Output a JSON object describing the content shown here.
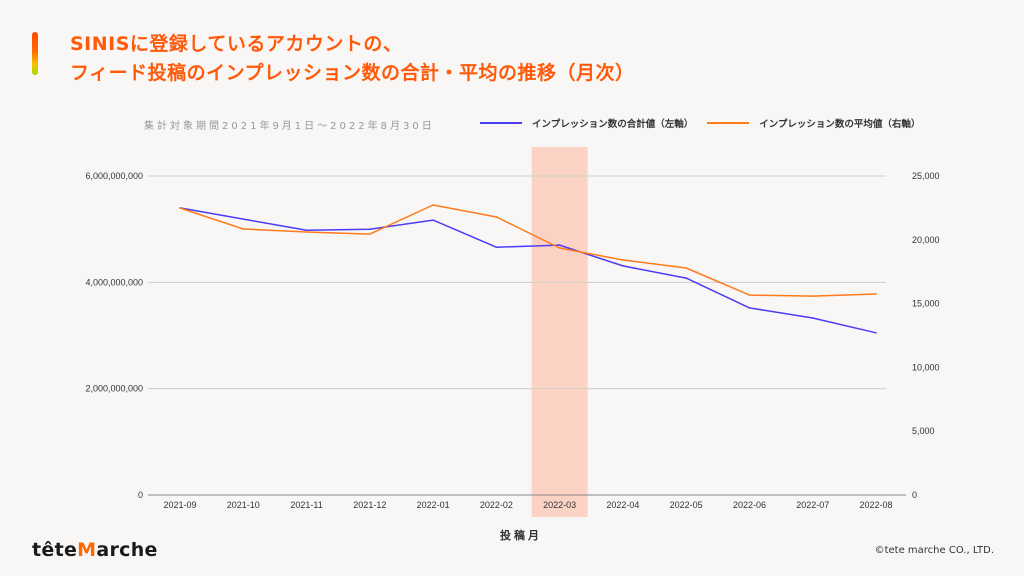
{
  "header": {
    "title_line1": "SINISに登録しているアカウントの、",
    "title_line2": "フィード投稿のインプレッション数の合計・平均の推移（月次）"
  },
  "period_note": "集計対象期間2021年9月1日～2022年8月30日",
  "footer": {
    "logo_pre": "tête",
    "logo_m": "M",
    "logo_post": "arche",
    "copyright": "©tete marche CO., LTD."
  },
  "colors": {
    "total": "#4b3cf5",
    "average": "#ff7a1a",
    "highlight": "#fbd3c4",
    "title": "#ff5a0a"
  },
  "chart_data": {
    "type": "line",
    "title": "SINISに登録しているアカウントの、フィード投稿のインプレッション数の合計・平均の推移（月次）",
    "xlabel": "投稿月",
    "ylabel_left": "",
    "ylabel_right": "",
    "categories": [
      "2021-09",
      "2021-10",
      "2021-11",
      "2021-12",
      "2022-01",
      "2022-02",
      "2022-03",
      "2022-04",
      "2022-05",
      "2022-06",
      "2022-07",
      "2022-08"
    ],
    "series": [
      {
        "name": "インプレッション数の合計値（左軸）",
        "axis": "left",
        "values": [
          5400000000,
          5190000000,
          4980000000,
          5000000000,
          5170000000,
          4660000000,
          4700000000,
          4310000000,
          4080000000,
          3520000000,
          3330000000,
          3050000000
        ]
      },
      {
        "name": "インプレッション数の平均値（右軸）",
        "axis": "right",
        "values": [
          22490,
          20850,
          20610,
          20450,
          22730,
          21790,
          19360,
          18420,
          17790,
          15670,
          15590,
          15750
        ]
      }
    ],
    "left_axis": {
      "ylim": [
        0,
        6000000000
      ],
      "ticks": [
        0,
        2000000000,
        4000000000,
        6000000000
      ],
      "tick_labels": [
        "0",
        "2,000,000,000",
        "4,000,000,000",
        "6,000,000,000"
      ]
    },
    "right_axis": {
      "ylim": [
        0,
        25000
      ],
      "ticks": [
        0,
        5000,
        10000,
        15000,
        20000,
        25000
      ],
      "tick_labels": [
        "0",
        "5,000",
        "10,000",
        "15,000",
        "20,000",
        "25,000"
      ]
    },
    "highlight_category": "2022-03",
    "grid": true,
    "legend_position": "top-right"
  }
}
